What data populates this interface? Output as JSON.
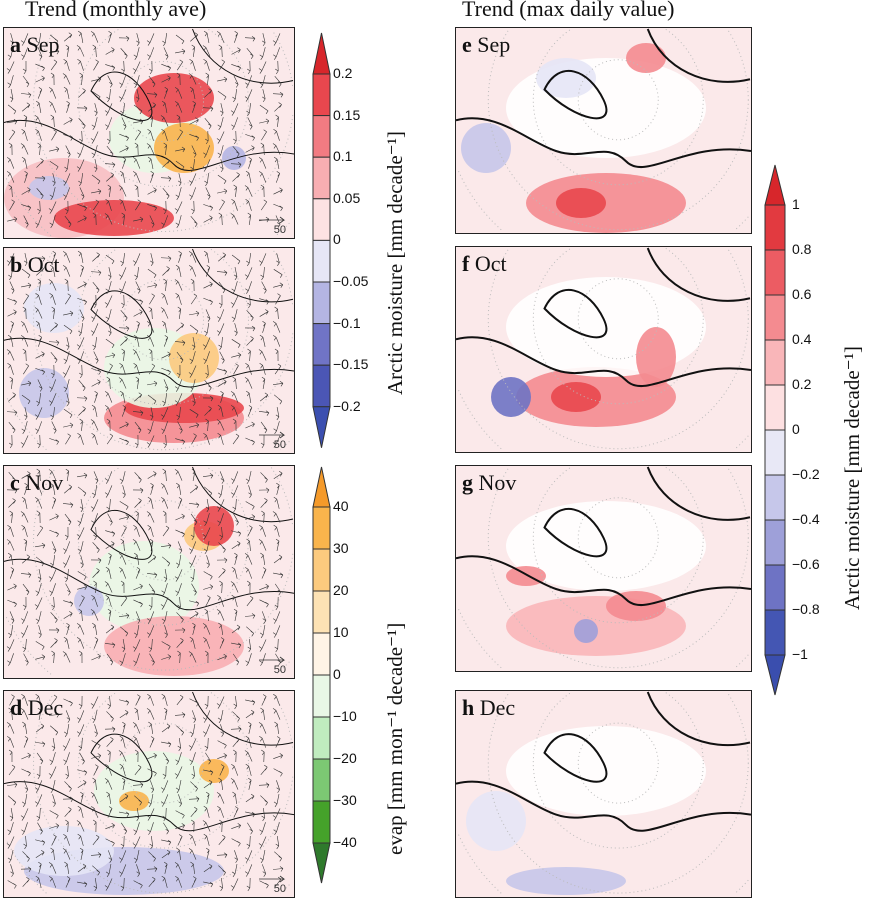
{
  "left_column_title": "Trend (monthly ave)",
  "right_column_title": "Trend (max daily value)",
  "left_panels": [
    {
      "letter": "a",
      "month": "Sep",
      "scale": "50"
    },
    {
      "letter": "b",
      "month": "Oct",
      "scale": "50"
    },
    {
      "letter": "c",
      "month": "Nov",
      "scale": "50"
    },
    {
      "letter": "d",
      "month": "Dec",
      "scale": "50"
    }
  ],
  "right_panels": [
    {
      "letter": "e",
      "month": "Sep"
    },
    {
      "letter": "f",
      "month": "Oct"
    },
    {
      "letter": "g",
      "month": "Nov"
    },
    {
      "letter": "h",
      "month": "Dec"
    }
  ],
  "colorbars": {
    "moisture_monthly": {
      "title": "Arctic moisture [mm decade⁻¹]",
      "ticks": [
        "0.2",
        "0.15",
        "0.1",
        "0.05",
        "0",
        "−0.05",
        "−0.1",
        "−0.15",
        "−0.2"
      ],
      "colors": [
        "#d7262b",
        "#e9474e",
        "#f27b82",
        "#f8aeb2",
        "#fde2e3",
        "#e6e6f6",
        "#b4b5e3",
        "#7074c6",
        "#4b56b5",
        "#3b4fb0"
      ]
    },
    "evap": {
      "title": "evap [mm mon⁻¹ decade⁻¹]",
      "ticks": [
        "40",
        "30",
        "20",
        "10",
        "0",
        "−10",
        "−20",
        "−30",
        "−40"
      ],
      "colors": [
        "#f59a2a",
        "#f9b44c",
        "#fcca7e",
        "#fde2b4",
        "#fff4e6",
        "#e9f7e6",
        "#c0ecbf",
        "#7cc873",
        "#45a22a",
        "#2f7a2c"
      ]
    },
    "moisture_max": {
      "title": "Arctic moisture [mm decade⁻¹]",
      "ticks": [
        "1",
        "0.8",
        "0.6",
        "0.4",
        "0.2",
        "0",
        "−0.2",
        "−0.4",
        "−0.6",
        "−0.8",
        "−1"
      ],
      "colors": [
        "#d7262b",
        "#e23a40",
        "#ec5c63",
        "#f48b90",
        "#f9b6b9",
        "#fde0e1",
        "#e8e8f6",
        "#c6c7ea",
        "#9ea0d9",
        "#6e73c4",
        "#4456b3",
        "#3a4eae"
      ]
    }
  }
}
